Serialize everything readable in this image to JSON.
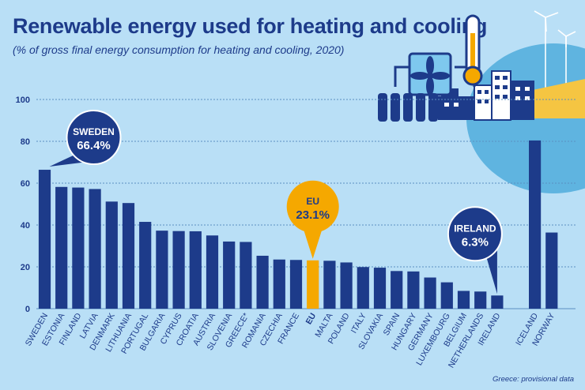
{
  "title": "Renewable energy used for heating and cooling",
  "subtitle": "(% of gross final energy consumption for heating and cooling, 2020)",
  "footnote": "Greece: provisional data",
  "colors": {
    "background": "#b9dff6",
    "bar": "#1d3b8a",
    "eu_bar": "#f5a800",
    "grid": "#5a8fc2",
    "text": "#1d3b8a",
    "callout_white": "#ffffff",
    "callout_orange": "#f5a800"
  },
  "callouts": [
    {
      "name": "SWEDEN",
      "value": "66.4%",
      "style": "navy"
    },
    {
      "name": "EU",
      "value": "23.1%",
      "style": "orange"
    },
    {
      "name": "IRELAND",
      "value": "6.3%",
      "style": "navy"
    }
  ],
  "chart_data": {
    "type": "bar",
    "title": "Renewable energy used for heating and cooling",
    "subtitle": "(% of gross final energy consumption for heating and cooling, 2020)",
    "ylim": [
      0,
      100
    ],
    "yticks": [
      0,
      20,
      40,
      60,
      80,
      100
    ],
    "grid": true,
    "categories": [
      "SWEDEN",
      "ESTONIA",
      "FINLAND",
      "LATVIA",
      "DENMARK",
      "LITHUANIA",
      "PORTUGAL",
      "BULGARIA",
      "CYPRUS",
      "CROATIA",
      "AUSTRIA",
      "SLOVENIA",
      "GREECE*",
      "ROMANIA",
      "CZECHIA",
      "FRANCE",
      "EU",
      "MALTA",
      "POLAND",
      "ITALY",
      "SLOVAKIA",
      "SPAIN",
      "HUNGARY",
      "GERMANY",
      "LUXEMBOURG",
      "BELGIUM",
      "NETHERLANDS",
      "IRELAND",
      "ICELAND",
      "NORWAY"
    ],
    "values": [
      66.4,
      58.2,
      57.9,
      57.2,
      51.2,
      50.5,
      41.5,
      37.3,
      37.1,
      37.0,
      35.0,
      32.1,
      31.9,
      25.3,
      23.5,
      23.3,
      23.1,
      22.9,
      22.1,
      19.9,
      19.6,
      18.0,
      17.8,
      14.9,
      12.6,
      8.5,
      8.2,
      6.3,
      80.4,
      36.4
    ],
    "highlight": "EU",
    "gap_before": [
      "ICELAND"
    ]
  }
}
